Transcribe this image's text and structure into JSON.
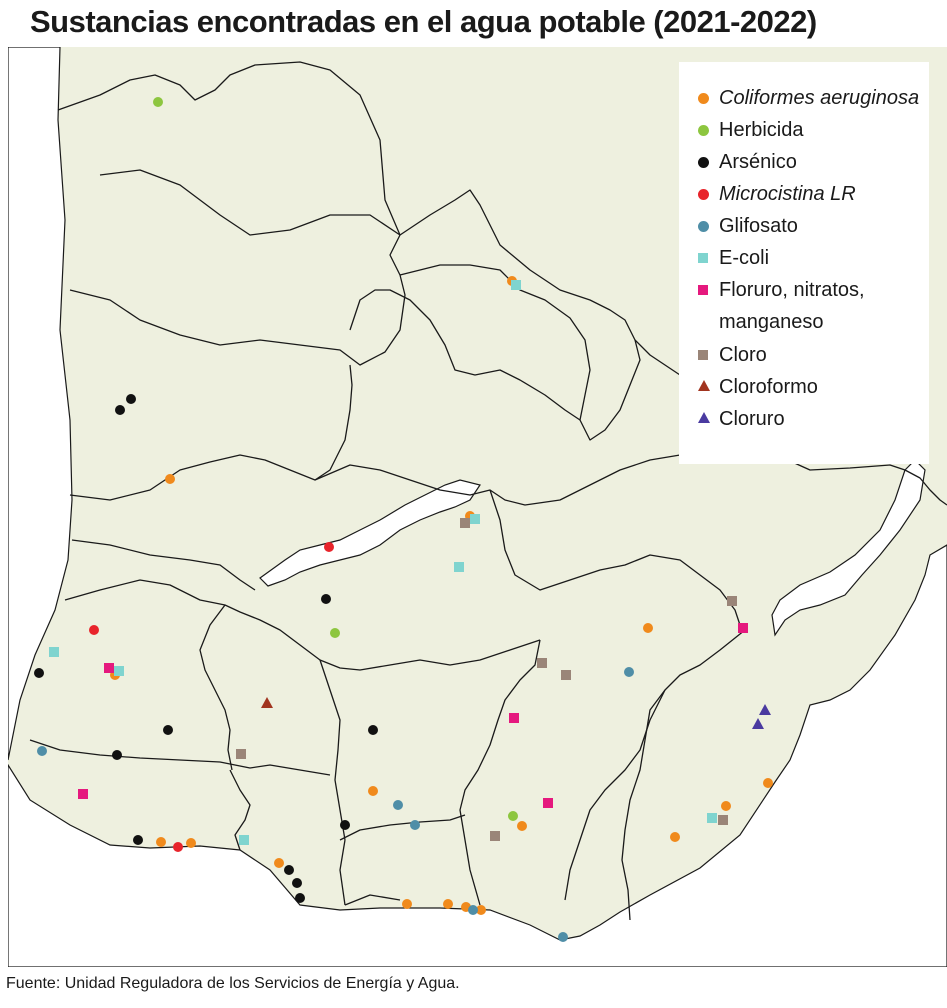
{
  "title": "Sustancias encontradas en el agua potable (2021-2022)",
  "source": "Fuente: Unidad Reguladora de los Servicios de Energía y Agua.",
  "colors": {
    "land": "#eef0df",
    "water": "#ffffff",
    "border": "#1a1a1a"
  },
  "legend": [
    {
      "key": "coliformes",
      "label": "Coliformes aeruginosa",
      "italic": true,
      "shape": "circle",
      "color": "#f08a1c"
    },
    {
      "key": "herbicida",
      "label": "Herbicida",
      "italic": false,
      "shape": "circle",
      "color": "#8dc63f"
    },
    {
      "key": "arsenico",
      "label": "Arsénico",
      "italic": false,
      "shape": "circle",
      "color": "#111111"
    },
    {
      "key": "microcistina",
      "label": "Microcistina LR",
      "italic": true,
      "shape": "circle",
      "color": "#e8242b"
    },
    {
      "key": "glifosato",
      "label": "Glifosato",
      "italic": false,
      "shape": "circle",
      "color": "#4f8ea7"
    },
    {
      "key": "ecoli",
      "label": "E-coli",
      "italic": false,
      "shape": "square",
      "color": "#7fd4cf"
    },
    {
      "key": "floruro",
      "label": "Floruro, nitratos,",
      "label2": "manganeso",
      "italic": false,
      "shape": "square",
      "color": "#e5197e"
    },
    {
      "key": "cloro",
      "label": "Cloro",
      "italic": false,
      "shape": "square",
      "color": "#9a8578"
    },
    {
      "key": "cloroformo",
      "label": "Cloroformo",
      "italic": false,
      "shape": "triangle",
      "color": "#a1341f"
    },
    {
      "key": "cloruro",
      "label": "Cloruro",
      "italic": false,
      "shape": "triangle",
      "color": "#4a3aa0"
    }
  ]
}
